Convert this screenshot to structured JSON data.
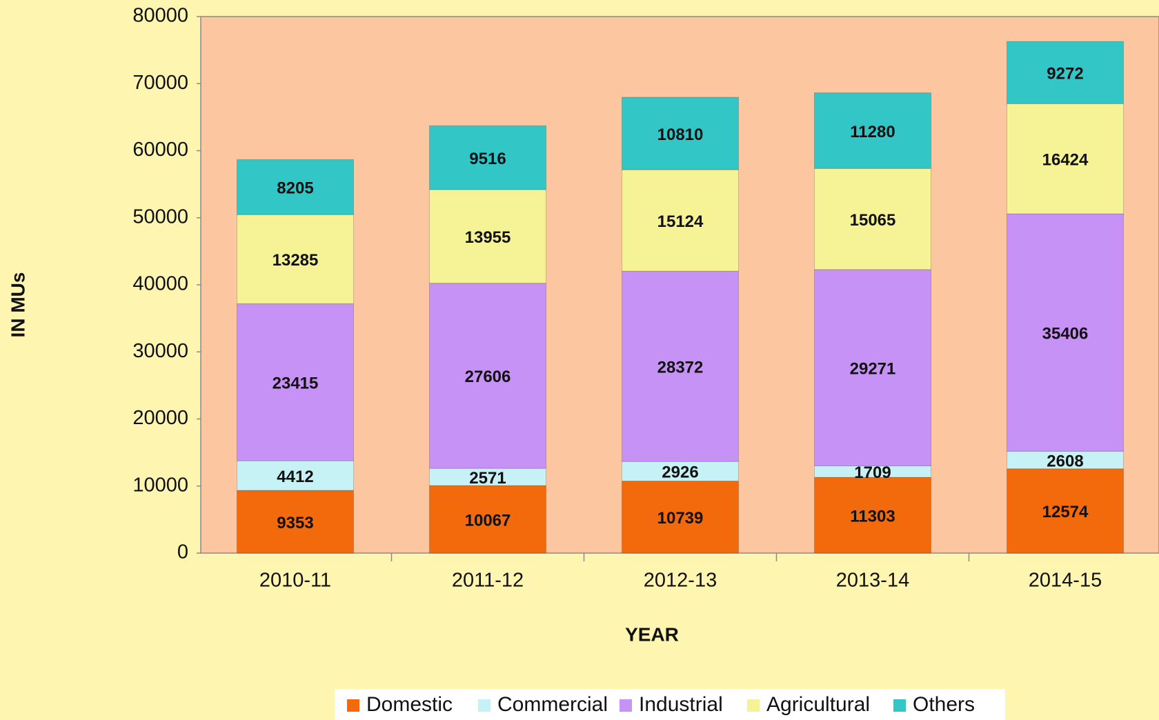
{
  "chart_data": {
    "type": "stacked_bar",
    "categories": [
      "2010-11",
      "2011-12",
      "2012-13",
      "2013-14",
      "2014-15"
    ],
    "series": [
      {
        "name": "Domestic",
        "color": "#f26a0c",
        "values": [
          9353,
          10067,
          10739,
          11303,
          12574
        ]
      },
      {
        "name": "Commercial",
        "color": "#c6f2f6",
        "values": [
          4412,
          2571,
          2926,
          1709,
          2608
        ]
      },
      {
        "name": "Industrial",
        "color": "#c792f6",
        "values": [
          23415,
          27606,
          28372,
          29271,
          35406
        ]
      },
      {
        "name": "Agricultural",
        "color": "#f6f296",
        "values": [
          13285,
          13955,
          15124,
          15065,
          16424
        ]
      },
      {
        "name": "Others",
        "color": "#33c6c6",
        "values": [
          8205,
          9516,
          10810,
          11280,
          9272
        ]
      }
    ],
    "x_label": "YEAR",
    "y_label": "IN MUs",
    "ylim": [
      0,
      80000
    ],
    "yticks": [
      0,
      10000,
      20000,
      30000,
      40000,
      50000,
      60000,
      70000,
      80000
    ],
    "legend": "bottom"
  }
}
